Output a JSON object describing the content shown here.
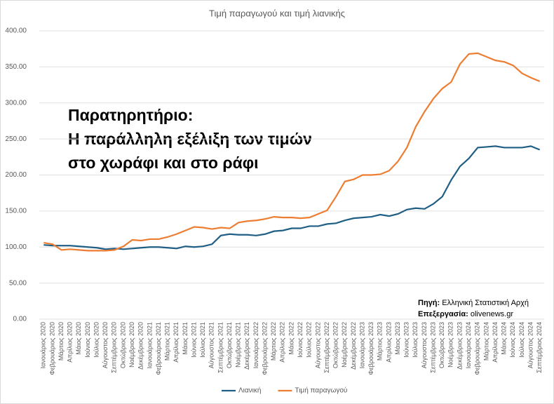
{
  "chart_data": {
    "type": "line",
    "title": "Τιμή παραγωγού και τιμή λιανικής",
    "annotation": [
      "Παρατηρητήριο:",
      "Η παράλληλη εξέλιξη των τιμών",
      "στο χωράφι και στο ράφι"
    ],
    "source": {
      "label": "Πηγή:",
      "text": "Ελληνική Στατιστική Αρχή"
    },
    "processing": {
      "label": "Επεξεργασία:",
      "text": "olivenews.gr"
    },
    "categories": [
      "Ιανουάριος 2020",
      "Φεβρουάριος 2020",
      "Μάρτιος 2020",
      "Απρίλιος 2020",
      "Μάιος 2020",
      "Ιούνιος 2020",
      "Ιούλιος 2020",
      "Αύγουστος 2020",
      "Σεπτέμβριος 2020",
      "Οκτώβριος 2020",
      "Νοέμβριος 2020",
      "Δεκέμβριος 2020",
      "Ιανουάριος 2021",
      "Φεβρουάριος 2021",
      "Μάρτιος 2021",
      "Απρίλιος 2021",
      "Μάιος 2021",
      "Ιούνιος 2021",
      "Ιούλιος 2021",
      "Αύγουστος 2021",
      "Σεπτέμβριος 2021",
      "Οκτώβριος 2021",
      "Νοέμβριος 2021",
      "Δεκέμβριος 2021",
      "Ιανουάριος 2022",
      "Φεβρουάριος 2022",
      "Μάρτιος 2022",
      "Απρίλιος 2022",
      "Μάιος 2022",
      "Ιούνιος 2022",
      "Ιούλιος 2022",
      "Αύγουστος 2022",
      "Σεπτέμβριος 2022",
      "Οκτώβριος 2022",
      "Νοέμβριος 2022",
      "Δεκέμβριος 2022",
      "Ιανουάριος 2023",
      "Φεβρουάριος 2023",
      "Μάρτιος 2023",
      "Απρίλιος 2023",
      "Μάιος 2023",
      "Ιούνιος 2023",
      "Ιούλιος 2023",
      "Αύγουστος 2023",
      "Σεπτέμβριος 2023",
      "Οκτώβριος 2023",
      "Νοέμβριος 2023",
      "Δεκέμβριος 2023",
      "Ιανουάριος 2024",
      "Φεβρουάριος 2024",
      "Μάρτιος 2024",
      "Απρίλιος 2024",
      "Μάιος 2024",
      "Ιούνιος 2024",
      "Ιούλιος 2024",
      "Αύγουστος 2024",
      "Σεπτέμβριος 2024"
    ],
    "series": [
      {
        "name": "Λιανική",
        "color": "#1f5f85",
        "values": [
          103,
          102,
          102,
          102,
          101,
          100,
          99,
          97,
          98,
          97,
          98,
          99,
          100,
          100,
          99,
          98,
          101,
          100,
          101,
          104,
          116,
          118,
          117,
          117,
          116,
          118,
          122,
          123,
          126,
          126,
          129,
          129,
          132,
          133,
          137,
          140,
          141,
          142,
          145,
          143,
          146,
          152,
          154,
          153,
          160,
          170,
          193,
          212,
          223,
          238,
          239,
          240,
          238,
          238,
          238,
          240,
          235
        ]
      },
      {
        "name": "Τιμή παραγωγού",
        "color": "#ed7d31",
        "values": [
          106,
          104,
          96,
          97,
          96,
          95,
          95,
          95,
          96,
          101,
          110,
          109,
          111,
          111,
          114,
          118,
          123,
          128,
          127,
          125,
          127,
          126,
          134,
          136,
          137,
          139,
          142,
          141,
          141,
          140,
          141,
          146,
          151,
          170,
          191,
          194,
          200,
          200,
          201,
          206,
          219,
          238,
          267,
          288,
          306,
          320,
          329,
          354,
          368,
          369,
          364,
          359,
          357,
          352,
          341,
          335,
          330
        ]
      }
    ],
    "ylim": [
      0,
      400
    ],
    "yticks": [
      {
        "value": 0,
        "label": "0.00"
      },
      {
        "value": 50,
        "label": "50.00"
      },
      {
        "value": 100,
        "label": "100.00"
      },
      {
        "value": 150,
        "label": "150.00"
      },
      {
        "value": 200,
        "label": "200.00"
      },
      {
        "value": 250,
        "label": "250.00"
      },
      {
        "value": 300,
        "label": "300.00"
      },
      {
        "value": 350,
        "label": "350.00"
      },
      {
        "value": 400,
        "label": "400.00"
      }
    ],
    "grid": true,
    "legend": "bottom"
  }
}
